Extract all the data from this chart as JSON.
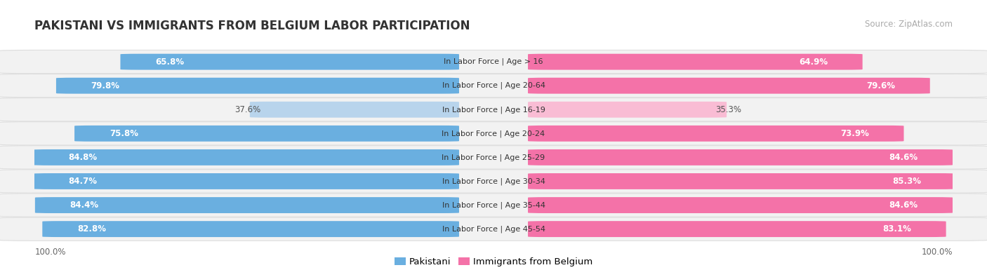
{
  "title": "PAKISTANI VS IMMIGRANTS FROM BELGIUM LABOR PARTICIPATION",
  "source": "Source: ZipAtlas.com",
  "categories": [
    "In Labor Force | Age > 16",
    "In Labor Force | Age 20-64",
    "In Labor Force | Age 16-19",
    "In Labor Force | Age 20-24",
    "In Labor Force | Age 25-29",
    "In Labor Force | Age 30-34",
    "In Labor Force | Age 35-44",
    "In Labor Force | Age 45-54"
  ],
  "pakistani_values": [
    65.8,
    79.8,
    37.6,
    75.8,
    84.8,
    84.7,
    84.4,
    82.8
  ],
  "belgium_values": [
    64.9,
    79.6,
    35.3,
    73.9,
    84.6,
    85.3,
    84.6,
    83.1
  ],
  "pakistani_color_dark": "#6aafe0",
  "pakistani_color_light": "#b8d4ec",
  "belgium_color_dark": "#f472a8",
  "belgium_color_light": "#f9bcd4",
  "row_bg_color": "#f2f2f2",
  "row_border_color": "#dddddd",
  "max_value": 100.0,
  "legend_pakistani": "Pakistani",
  "legend_belgium": "Immigrants from Belgium",
  "label_fontsize": 8.5,
  "cat_fontsize": 8.0,
  "title_fontsize": 12,
  "source_fontsize": 8.5,
  "legend_fontsize": 9.5,
  "footer_fontsize": 8.5
}
